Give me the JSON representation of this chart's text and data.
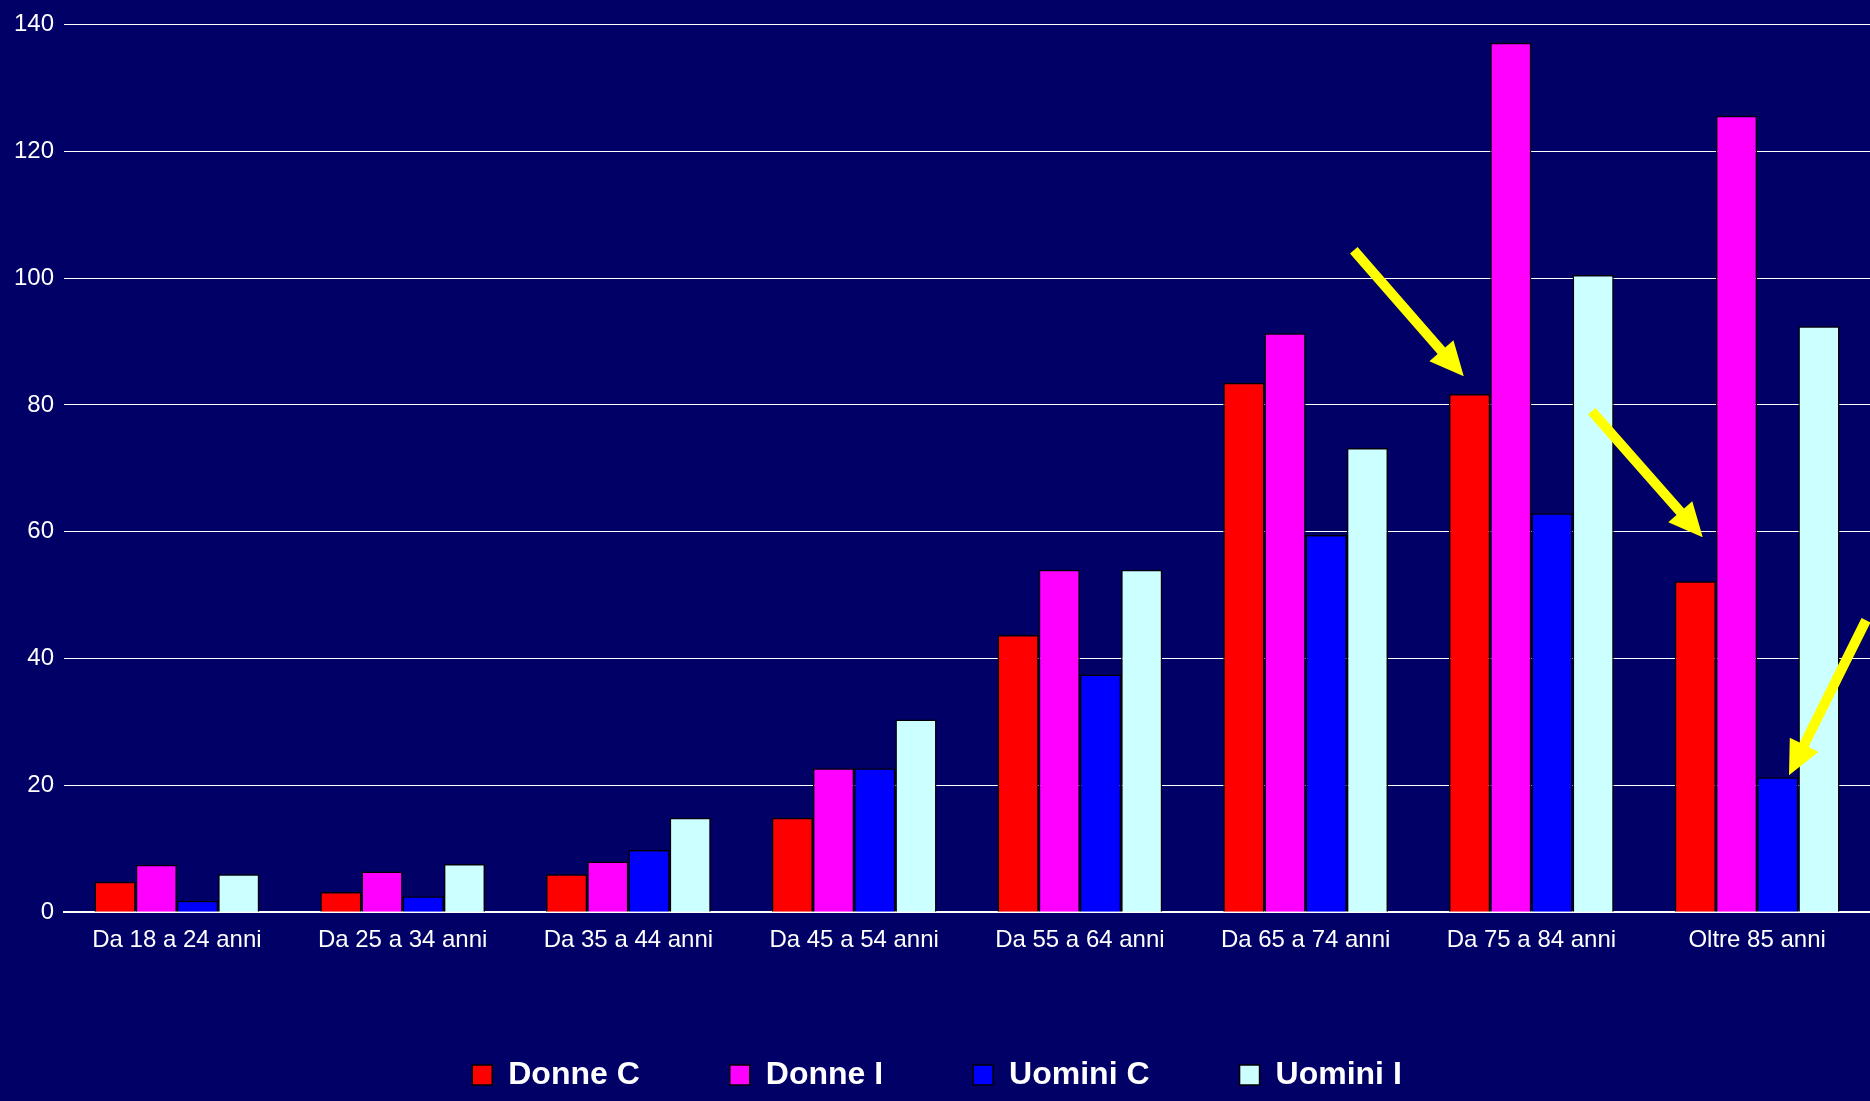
{
  "chart_data": {
    "type": "bar",
    "categories": [
      "Da 18 a 24 anni",
      "Da 25 a 34 anni",
      "Da 35 a 44 anni",
      "Da 45 a 54 anni",
      "Da 55 a 64 anni",
      "Da 65 a 74 anni",
      "Da 75 a 84 anni",
      "Oltre 85 anni"
    ],
    "series": [
      {
        "name": "Donne C",
        "color": "#ff0000",
        "values": [
          4.8,
          3.2,
          6.0,
          14.9,
          43.7,
          83.5,
          81.7,
          52.2
        ]
      },
      {
        "name": "Donne I",
        "color": "#ff00ff",
        "values": [
          7.5,
          6.4,
          8.0,
          22.7,
          54.0,
          91.3,
          137.1,
          125.6
        ]
      },
      {
        "name": "Uomini C",
        "color": "#0000ff",
        "values": [
          1.8,
          2.5,
          9.8,
          22.7,
          37.5,
          59.5,
          62.9,
          21.3
        ]
      },
      {
        "name": "Uomini I",
        "color": "#ccffff",
        "values": [
          6.0,
          7.6,
          14.9,
          30.4,
          54.0,
          73.2,
          100.5,
          92.4
        ]
      }
    ],
    "ylim": [
      0,
      140
    ],
    "yticks": [
      0,
      20,
      40,
      60,
      80,
      100,
      120,
      140
    ],
    "grid": "y",
    "legend": "bottom"
  }
}
